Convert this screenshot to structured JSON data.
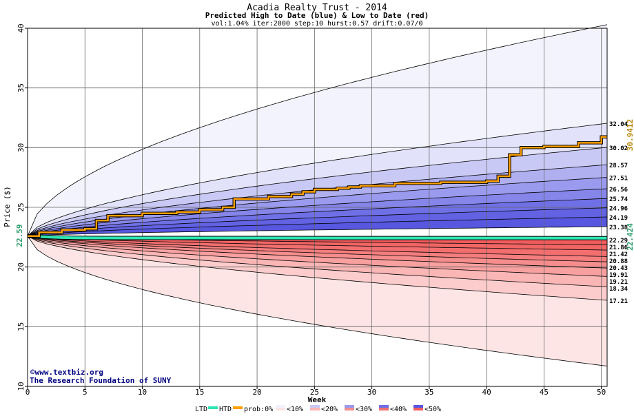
{
  "chart_data": {
    "type": "area",
    "title": "Acadia Realty Trust - 2014",
    "subtitle": "Predicted High to Date (blue) &  Low to Date (red)",
    "params": "vol:1.04% iter:2000 step:10 hurst:0.57 drift:0.07/0",
    "xlabel": "Week",
    "ylabel": "Price ($)",
    "xlim": [
      0,
      50.5
    ],
    "ylim": [
      10,
      40
    ],
    "x_ticks": [
      0,
      5,
      10,
      15,
      20,
      25,
      30,
      35,
      40,
      45,
      50
    ],
    "y_ticks": [
      10,
      15,
      20,
      25,
      30,
      35,
      40
    ],
    "grid": true,
    "start_price": 22.59,
    "start_price_label": "22.59",
    "end_high_label": "30.9412",
    "end_low_label": "22.424",
    "right_labels": [
      "32.04",
      "30.02",
      "28.57",
      "27.51",
      "26.56",
      "25.74",
      "24.96",
      "24.19",
      "23.38",
      "22.29",
      "21.86",
      "21.42",
      "20.88",
      "20.43",
      "19.91",
      "19.21",
      "18.34",
      "17.21"
    ],
    "high_band_ends": [
      40.3,
      32.04,
      30.02,
      28.57,
      27.51,
      26.56,
      25.74,
      24.96,
      24.19,
      23.38
    ],
    "low_band_ends": [
      22.29,
      21.86,
      21.42,
      20.88,
      20.43,
      19.91,
      19.21,
      18.34,
      17.21,
      11.7
    ],
    "htd_series": {
      "x": [
        0,
        1,
        2,
        3,
        4,
        5,
        6,
        7,
        8,
        9,
        10,
        11,
        12,
        13,
        14,
        15,
        16,
        17,
        18,
        19,
        20,
        21,
        22,
        23,
        24,
        25,
        26,
        27,
        28,
        29,
        30,
        31,
        32,
        33,
        34,
        35,
        36,
        37,
        38,
        39,
        40,
        41,
        42,
        43,
        44,
        45,
        46,
        47,
        48,
        49,
        50,
        50.5
      ],
      "y": [
        22.59,
        22.9,
        22.9,
        23.1,
        23.1,
        23.2,
        23.9,
        24.3,
        24.3,
        24.3,
        24.5,
        24.5,
        24.5,
        24.6,
        24.6,
        24.8,
        24.8,
        25.0,
        25.7,
        25.7,
        25.7,
        25.9,
        25.9,
        26.1,
        26.3,
        26.5,
        26.5,
        26.6,
        26.7,
        26.8,
        26.8,
        26.8,
        27.0,
        27.0,
        27.0,
        27.0,
        27.1,
        27.1,
        27.1,
        27.1,
        27.2,
        27.6,
        29.4,
        30.0,
        30.0,
        30.1,
        30.1,
        30.1,
        30.4,
        30.4,
        30.9,
        30.9
      ]
    },
    "ltd_series": {
      "x": [
        0,
        1,
        2,
        3,
        4,
        7,
        50.5
      ],
      "y": [
        22.59,
        22.55,
        22.5,
        22.47,
        22.45,
        22.43,
        22.424
      ]
    },
    "legend": {
      "ltd": "LTD",
      "htd": "HTD",
      "prob": "prob:0%",
      "items": [
        "<10%",
        "<20%",
        "<30%",
        "<40%",
        "<50%"
      ]
    },
    "colors": {
      "ltd": "#2ee6b4",
      "htd": "#ff9f00",
      "high_label": "#b8860b",
      "low_label": "#2a9d6a",
      "blue_bands": [
        "#f3f3fd",
        "#e2e2fa",
        "#c9c9f5",
        "#b0b0f1",
        "#9a9aee",
        "#8585ea",
        "#7070e6",
        "#6262e3",
        "#5757e0"
      ],
      "red_bands": [
        "#fde5e5",
        "#fccccc",
        "#fab5b5",
        "#f8a0a0",
        "#f68d8d",
        "#f47d7d",
        "#f36f6f",
        "#f26565",
        "#f05c5c"
      ]
    }
  },
  "credits": {
    "site": "www.textbiz.org",
    "org": "The Research Foundation of SUNY"
  }
}
